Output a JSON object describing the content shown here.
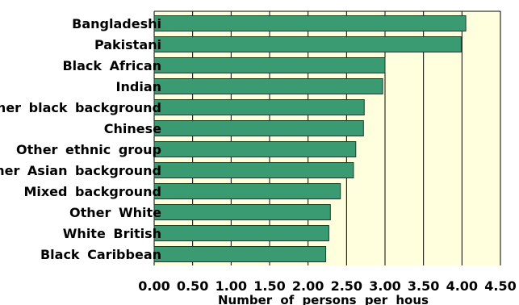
{
  "chart_data": {
    "type": "bar",
    "orientation": "horizontal",
    "categories": [
      "Bangladeshi",
      "Pakistani",
      "Black African",
      "Indian",
      "Other black background",
      "Chinese",
      "Other ethnic group",
      "Other Asian background",
      "Mixed background",
      "Other White",
      "White British",
      "Black Caribbean"
    ],
    "values": [
      4.05,
      3.99,
      3.0,
      2.97,
      2.73,
      2.72,
      2.62,
      2.59,
      2.42,
      2.29,
      2.27,
      2.23
    ],
    "xlim": [
      0,
      4.5
    ],
    "xticks": [
      "0.00",
      "0.50",
      "1.00",
      "1.50",
      "2.00",
      "2.50",
      "3.00",
      "3.50",
      "4.00",
      "4.50"
    ],
    "xlabel": "Number of persons per hous",
    "title": "",
    "ylabel": "",
    "grid": "vertical",
    "colors": {
      "bar_fill": "#3a9a72",
      "bar_stroke": "#1d3a2c",
      "plot_background": "#ffffdd",
      "gridline": "#000000"
    }
  }
}
